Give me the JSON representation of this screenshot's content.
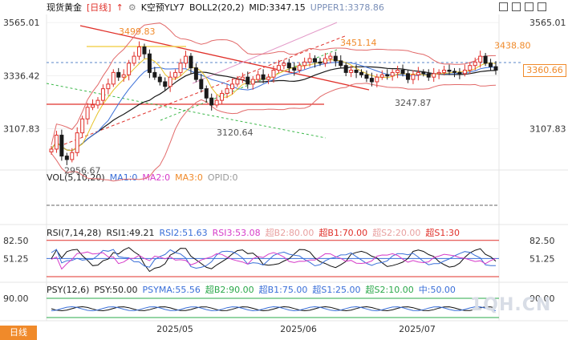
{
  "header": {
    "symbol": "现货黄金",
    "period": "[日线]",
    "k_forecast": "K空预YLY7",
    "boll_name": "BOLL2(20,2)",
    "mid": "MID:3347.15",
    "upper": "UPPER1:3378.86"
  },
  "vol_legend": {
    "name": "VOL(5,10,20)",
    "ma1": "MA1:0",
    "ma2": "MA2:0",
    "ma3": "MA3:0",
    "opid": "OPID:0"
  },
  "rsi_legend": {
    "name": "RSI(7,14,28)",
    "rsi1": "RSI1:49.21",
    "rsi2": "RSI2:51.63",
    "rsi3": "RSI3:53.08",
    "b2": "超B2:80.00",
    "b1": "超B1:70.00",
    "s2": "超S2:20.00",
    "s1": "超S1:30"
  },
  "psy_legend": {
    "name": "PSY(12,6)",
    "psy": "PSY:50.00",
    "psyma": "PSYMA:55.56",
    "b2": "超B2:90.00",
    "b1": "超B1:75.00",
    "s1": "超S1:25.00",
    "s2": "超S2:10.00",
    "mid": "中:50.00"
  },
  "period_tab": "日线",
  "current_price": "3360.66",
  "watermark": "1QH.CN",
  "colors": {
    "up": "#e0302a",
    "down": "#1a1a1a",
    "boll_band": "#e26a6a",
    "mid": "#1a1a1a",
    "ma_blue": "#3a6fd8",
    "ma_yellow": "#e6c227",
    "accent": "#f08a2a"
  },
  "icons": [
    "up-arrow-icon",
    "settings-icon",
    "minus-box-icon",
    "plus-box-icon",
    "restore-box-icon",
    "close-box-icon"
  ],
  "chart_data": {
    "type": "candlestick",
    "price_range": [
      2930,
      3600
    ],
    "y_ticks": [
      {
        "label": "3565.01",
        "value": 3565.01
      },
      {
        "label": "3336.42",
        "value": 3336.42
      },
      {
        "label": "3107.83",
        "value": 3107.83
      }
    ],
    "y_ticks_right": [
      {
        "label": "3565.01",
        "value": 3565.01
      },
      {
        "label": "3107.83",
        "value": 3107.83
      }
    ],
    "x_labels": [
      "2025/05",
      "2025/06",
      "2025/07"
    ],
    "annotations": [
      {
        "text": "3499.83",
        "value": 3499.83,
        "kind": "high"
      },
      {
        "text": "3451.14",
        "value": 3451.14,
        "kind": "high"
      },
      {
        "text": "3438.80",
        "value": 3438.8,
        "kind": "high"
      },
      {
        "text": "3247.87",
        "value": 3247.87,
        "kind": "low"
      },
      {
        "text": "3120.64",
        "value": 3120.64,
        "kind": "low"
      },
      {
        "text": "2956.67",
        "value": 2956.67,
        "kind": "low"
      }
    ],
    "closes": [
      3020,
      3080,
      2990,
      2975,
      3005,
      3090,
      3150,
      3200,
      3210,
      3230,
      3280,
      3300,
      3350,
      3330,
      3340,
      3390,
      3420,
      3460,
      3430,
      3350,
      3330,
      3310,
      3290,
      3330,
      3350,
      3390,
      3420,
      3370,
      3320,
      3280,
      3240,
      3210,
      3230,
      3260,
      3280,
      3300,
      3320,
      3330,
      3300,
      3320,
      3340,
      3320,
      3330,
      3360,
      3380,
      3390,
      3370,
      3360,
      3380,
      3395,
      3410,
      3395,
      3390,
      3410,
      3420,
      3400,
      3380,
      3350,
      3360,
      3350,
      3340,
      3325,
      3310,
      3330,
      3340,
      3335,
      3350,
      3360,
      3345,
      3320,
      3340,
      3350,
      3345,
      3330,
      3345,
      3350,
      3360,
      3355,
      3350,
      3345,
      3360,
      3380,
      3395,
      3420,
      3390,
      3375,
      3360
    ],
    "rsi": {
      "levels": [
        {
          "label": "82.50",
          "value": 82.5
        },
        {
          "label": "51.25",
          "value": 51.25
        }
      ],
      "lines": [
        {
          "name": "RSI1",
          "value": 49.21
        },
        {
          "name": "RSI2",
          "value": 51.63
        },
        {
          "name": "RSI3",
          "value": 53.08
        }
      ]
    },
    "psy": {
      "levels": [
        {
          "label": "90.00",
          "value": 90
        }
      ],
      "psy": 50.0,
      "psyma": 55.56
    }
  }
}
